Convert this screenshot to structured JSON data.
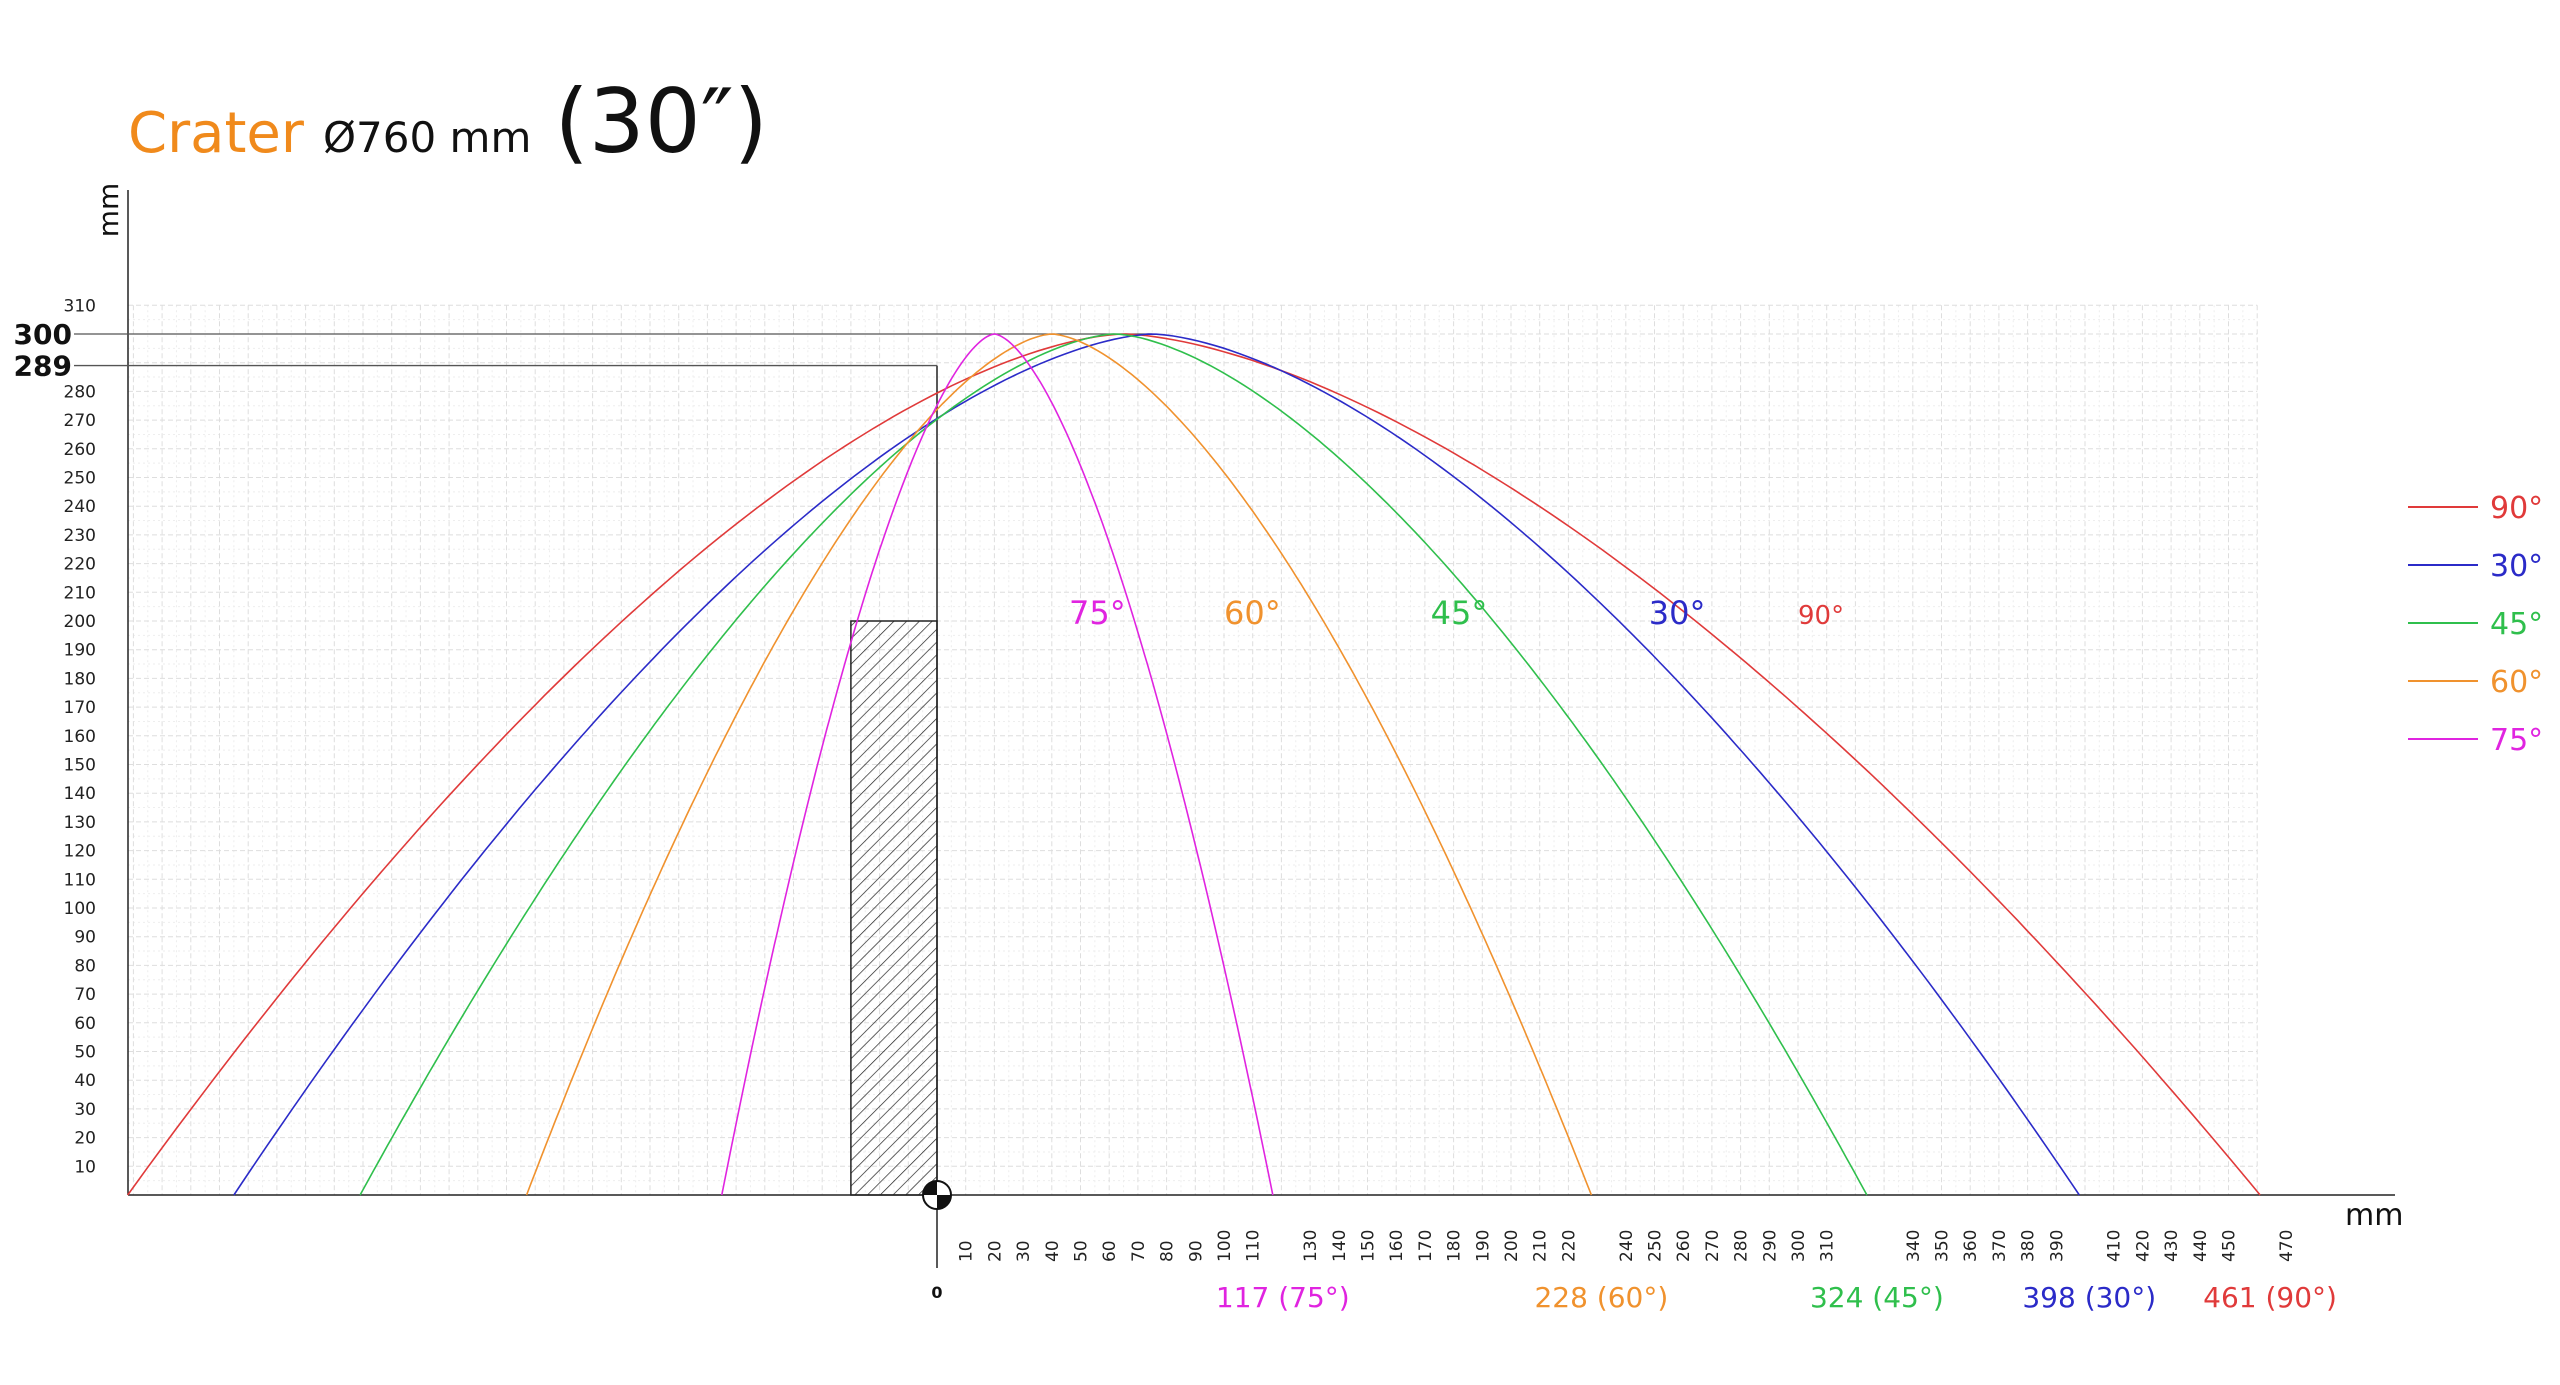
{
  "title": {
    "name": "Crater",
    "diameter": "Ø760 mm",
    "inches": "(30″)"
  },
  "chart_data": {
    "type": "line",
    "xlabel": "mm",
    "ylabel": "mm",
    "xlim": [
      -285,
      470
    ],
    "ylim": [
      0,
      310
    ],
    "grid": true,
    "legend_position": "right",
    "origin_label": "0",
    "y_ticks": [
      10,
      20,
      30,
      40,
      50,
      60,
      70,
      80,
      90,
      100,
      110,
      120,
      130,
      140,
      150,
      160,
      170,
      180,
      190,
      200,
      210,
      220,
      230,
      240,
      250,
      260,
      270,
      280,
      310
    ],
    "y_ticks_bold": [
      300,
      289
    ],
    "x_ticks": [
      10,
      20,
      30,
      40,
      50,
      60,
      70,
      80,
      90,
      100,
      110,
      130,
      140,
      150,
      160,
      170,
      180,
      190,
      200,
      210,
      220,
      240,
      250,
      260,
      270,
      280,
      290,
      300,
      310,
      340,
      350,
      360,
      370,
      380,
      390,
      410,
      420,
      430,
      440,
      450,
      470
    ],
    "shaded_block": {
      "x": [
        -30,
        0
      ],
      "y": [
        0,
        200
      ]
    },
    "series": [
      {
        "name": "90°",
        "color": "#e03a3a",
        "apex_x": 65,
        "apex_y": 300,
        "start_x": -282,
        "end_x": 461,
        "curve_label": "90°",
        "range_label": "461 (90°)"
      },
      {
        "name": "30°",
        "color": "#2b2bc8",
        "apex_x": 75,
        "apex_y": 300,
        "start_x": -245,
        "end_x": 398,
        "curve_label": "30°",
        "range_label": "398 (30°)"
      },
      {
        "name": "45°",
        "color": "#2fbf4c",
        "apex_x": 62,
        "apex_y": 300,
        "start_x": -201,
        "end_x": 324,
        "curve_label": "45°",
        "range_label": "324 (45°)"
      },
      {
        "name": "60°",
        "color": "#f0922e",
        "apex_x": 40,
        "apex_y": 300,
        "start_x": -143,
        "end_x": 228,
        "curve_label": "60°",
        "range_label": "228 (60°)"
      },
      {
        "name": "75°",
        "color": "#e024e0",
        "apex_x": 20,
        "apex_y": 300,
        "start_x": -75,
        "end_x": 117,
        "curve_label": "75°",
        "range_label": "117 (75°)"
      }
    ]
  }
}
